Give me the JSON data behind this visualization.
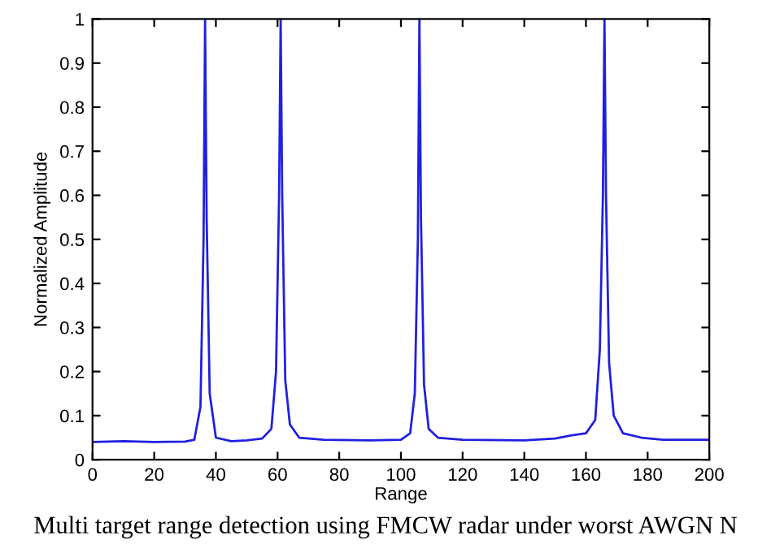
{
  "chart_data": {
    "type": "line",
    "xlabel": "Range",
    "ylabel": "Normalized Amplitude",
    "annotations": [
      "Multi target range detection using FMCW radar under worst AWGN N"
    ],
    "series": [
      {
        "color": "#2020e0",
        "x": [
          0,
          10,
          20,
          30,
          33,
          35,
          36,
          36.5,
          37,
          38,
          40,
          45,
          50,
          55,
          58,
          59.5,
          60.5,
          61,
          61.5,
          62.5,
          64,
          67,
          75,
          90,
          100,
          103,
          104.5,
          105.5,
          106,
          106.5,
          107.5,
          109,
          112,
          120,
          140,
          150,
          155,
          160,
          163,
          164.5,
          165.5,
          166,
          166.5,
          167.5,
          169,
          172,
          178,
          185,
          200
        ],
        "values": [
          0.04,
          0.042,
          0.04,
          0.041,
          0.045,
          0.12,
          0.5,
          1,
          0.55,
          0.15,
          0.05,
          0.042,
          0.044,
          0.048,
          0.07,
          0.2,
          0.6,
          1,
          0.6,
          0.18,
          0.08,
          0.05,
          0.045,
          0.044,
          0.045,
          0.06,
          0.15,
          0.5,
          1,
          0.55,
          0.17,
          0.07,
          0.05,
          0.045,
          0.044,
          0.048,
          0.055,
          0.06,
          0.09,
          0.25,
          0.6,
          1,
          0.6,
          0.22,
          0.1,
          0.06,
          0.05,
          0.045,
          0.045
        ]
      }
    ],
    "xlim": [
      0,
      200
    ],
    "ylim": [
      0,
      1
    ],
    "xticks": [
      0,
      20,
      40,
      60,
      80,
      100,
      120,
      140,
      160,
      180,
      200
    ],
    "yticks": [
      0,
      0.1,
      0.2,
      0.3,
      0.4,
      0.5,
      0.6,
      0.7,
      0.8,
      0.9,
      1
    ],
    "grid": false,
    "legend": false
  }
}
